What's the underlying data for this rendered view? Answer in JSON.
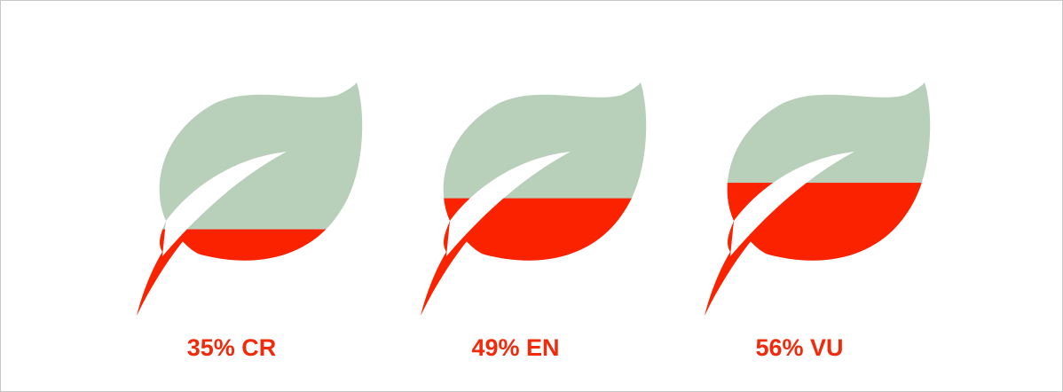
{
  "colors": {
    "fill": "#fb2200",
    "empty": "#b8cfba",
    "label": "#f02a0a"
  },
  "chart_data": {
    "type": "pictorial-fill",
    "icon": "leaf-icon",
    "items": [
      {
        "value": 35,
        "percent_text": "35%",
        "category": "CR",
        "label": "35% CR"
      },
      {
        "value": 49,
        "percent_text": "49%",
        "category": "EN",
        "label": "49% EN"
      },
      {
        "value": 56,
        "percent_text": "56%",
        "category": "VU",
        "label": "56% VU"
      }
    ]
  }
}
